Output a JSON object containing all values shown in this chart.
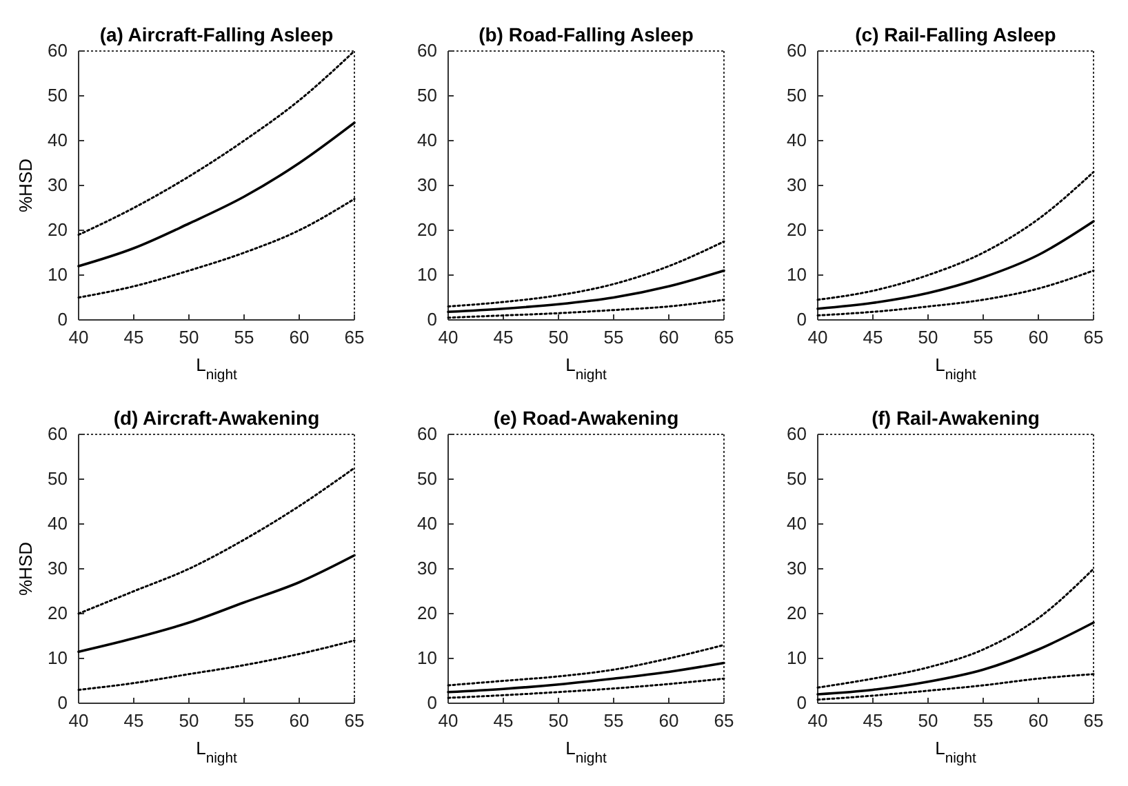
{
  "chart_data": [
    {
      "type": "line",
      "title": "(a) Aircraft-Falling Asleep",
      "xlabel": "L$_{night}$",
      "ylabel": "%HSD",
      "x": [
        40,
        45,
        50,
        55,
        60,
        65
      ],
      "xlim": [
        40,
        65
      ],
      "xticks": [
        40,
        45,
        50,
        55,
        60,
        65
      ],
      "ylim": [
        0,
        60
      ],
      "yticks": [
        0,
        10,
        20,
        30,
        40,
        50,
        60
      ],
      "grid": false,
      "series": [
        {
          "color": "#000000",
          "line_style": "solid",
          "values": [
            12,
            16,
            21.5,
            27.5,
            35,
            44
          ]
        },
        {
          "color": "#000000",
          "line_style": "dotted",
          "values": [
            19,
            25,
            32,
            40,
            49,
            60
          ]
        },
        {
          "color": "#000000",
          "line_style": "dotted",
          "values": [
            5,
            7.5,
            11,
            15,
            20,
            27
          ]
        }
      ]
    },
    {
      "type": "line",
      "title": "(b) Road-Falling Asleep",
      "xlabel": "L$_{night}$",
      "x": [
        40,
        45,
        50,
        55,
        60,
        65
      ],
      "xlim": [
        40,
        65
      ],
      "xticks": [
        40,
        45,
        50,
        55,
        60,
        65
      ],
      "ylim": [
        0,
        60
      ],
      "yticks": [
        0,
        10,
        20,
        30,
        40,
        50,
        60
      ],
      "grid": false,
      "series": [
        {
          "color": "#000000",
          "line_style": "solid",
          "values": [
            1.8,
            2.5,
            3.5,
            5,
            7.5,
            11
          ]
        },
        {
          "color": "#000000",
          "line_style": "dotted",
          "values": [
            3,
            4,
            5.5,
            8,
            12,
            17.5
          ]
        },
        {
          "color": "#000000",
          "line_style": "dotted",
          "values": [
            0.5,
            1,
            1.5,
            2.2,
            3,
            4.5
          ]
        }
      ]
    },
    {
      "type": "line",
      "title": "(c) Rail-Falling Asleep",
      "xlabel": "L$_{night}$",
      "x": [
        40,
        45,
        50,
        55,
        60,
        65
      ],
      "xlim": [
        40,
        65
      ],
      "xticks": [
        40,
        45,
        50,
        55,
        60,
        65
      ],
      "ylim": [
        0,
        60
      ],
      "yticks": [
        0,
        10,
        20,
        30,
        40,
        50,
        60
      ],
      "grid": false,
      "series": [
        {
          "color": "#000000",
          "line_style": "solid",
          "values": [
            2.5,
            3.8,
            6,
            9.5,
            14.5,
            22
          ]
        },
        {
          "color": "#000000",
          "line_style": "dotted",
          "values": [
            4.5,
            6.5,
            10,
            15,
            22.5,
            33
          ]
        },
        {
          "color": "#000000",
          "line_style": "dotted",
          "values": [
            1,
            1.8,
            3,
            4.5,
            7,
            11
          ]
        }
      ]
    },
    {
      "type": "line",
      "title": "(d) Aircraft-Awakening",
      "xlabel": "L$_{night}$",
      "ylabel": "%HSD",
      "x": [
        40,
        45,
        50,
        55,
        60,
        65
      ],
      "xlim": [
        40,
        65
      ],
      "xticks": [
        40,
        45,
        50,
        55,
        60,
        65
      ],
      "ylim": [
        0,
        60
      ],
      "yticks": [
        0,
        10,
        20,
        30,
        40,
        50,
        60
      ],
      "grid": false,
      "series": [
        {
          "color": "#000000",
          "line_style": "solid",
          "values": [
            11.5,
            14.5,
            18,
            22.5,
            27,
            33
          ]
        },
        {
          "color": "#000000",
          "line_style": "dotted",
          "values": [
            20,
            25,
            30,
            36.5,
            44,
            52.5
          ]
        },
        {
          "color": "#000000",
          "line_style": "dotted",
          "values": [
            3,
            4.5,
            6.5,
            8.5,
            11,
            14
          ]
        }
      ]
    },
    {
      "type": "line",
      "title": "(e) Road-Awakening",
      "xlabel": "L$_{night}$",
      "x": [
        40,
        45,
        50,
        55,
        60,
        65
      ],
      "xlim": [
        40,
        65
      ],
      "xticks": [
        40,
        45,
        50,
        55,
        60,
        65
      ],
      "ylim": [
        0,
        60
      ],
      "yticks": [
        0,
        10,
        20,
        30,
        40,
        50,
        60
      ],
      "grid": false,
      "series": [
        {
          "color": "#000000",
          "line_style": "solid",
          "values": [
            2.5,
            3.2,
            4.2,
            5.5,
            7,
            9
          ]
        },
        {
          "color": "#000000",
          "line_style": "dotted",
          "values": [
            4,
            5,
            6,
            7.5,
            10,
            13
          ]
        },
        {
          "color": "#000000",
          "line_style": "dotted",
          "values": [
            1.2,
            1.8,
            2.5,
            3.3,
            4.3,
            5.5
          ]
        }
      ]
    },
    {
      "type": "line",
      "title": "(f) Rail-Awakening",
      "xlabel": "L$_{night}$",
      "x": [
        40,
        45,
        50,
        55,
        60,
        65
      ],
      "xlim": [
        40,
        65
      ],
      "xticks": [
        40,
        45,
        50,
        55,
        60,
        65
      ],
      "ylim": [
        0,
        60
      ],
      "yticks": [
        0,
        10,
        20,
        30,
        40,
        50,
        60
      ],
      "grid": false,
      "series": [
        {
          "color": "#000000",
          "line_style": "solid",
          "values": [
            2,
            3,
            4.8,
            7.5,
            12,
            18
          ]
        },
        {
          "color": "#000000",
          "line_style": "dotted",
          "values": [
            3.5,
            5.5,
            8,
            12,
            19,
            30
          ]
        },
        {
          "color": "#000000",
          "line_style": "dotted",
          "values": [
            0.8,
            1.7,
            2.8,
            4,
            5.5,
            6.5
          ]
        }
      ]
    }
  ]
}
